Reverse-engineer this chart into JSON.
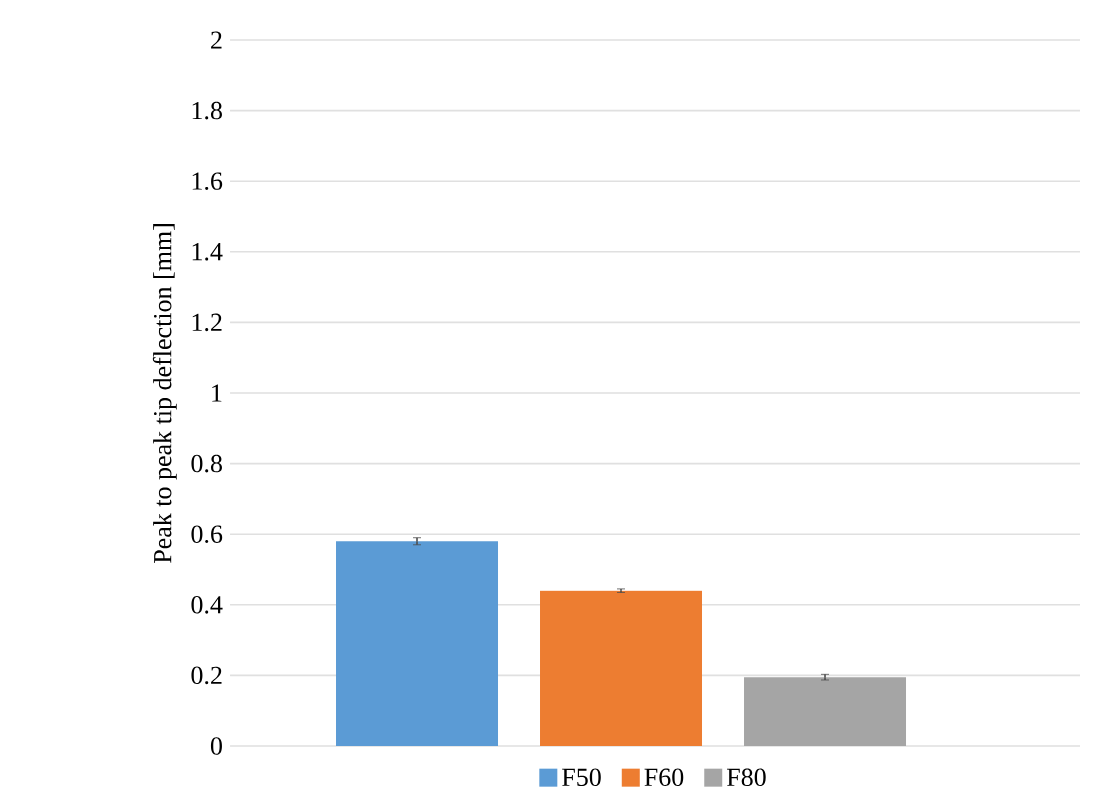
{
  "chart_data": {
    "type": "bar",
    "ylabel": "Peak to peak tip deflection [mm]",
    "categories": [
      null
    ],
    "series": [
      {
        "name": "F50",
        "color": "#5b9bd5",
        "values": [
          0.58
        ],
        "errors": [
          0.01
        ]
      },
      {
        "name": "F60",
        "color": "#ed7d31",
        "values": [
          0.44
        ],
        "errors": [
          0.005
        ]
      },
      {
        "name": "F80",
        "color": "#a5a5a5",
        "values": [
          0.195
        ],
        "errors": [
          0.008
        ]
      }
    ],
    "ylim": [
      0,
      2
    ],
    "yticks": [
      0,
      0.2,
      0.4,
      0.6,
      0.8,
      1,
      1.2,
      1.4,
      1.6,
      1.8,
      2
    ],
    "grid": "y",
    "legend": "bottom"
  }
}
